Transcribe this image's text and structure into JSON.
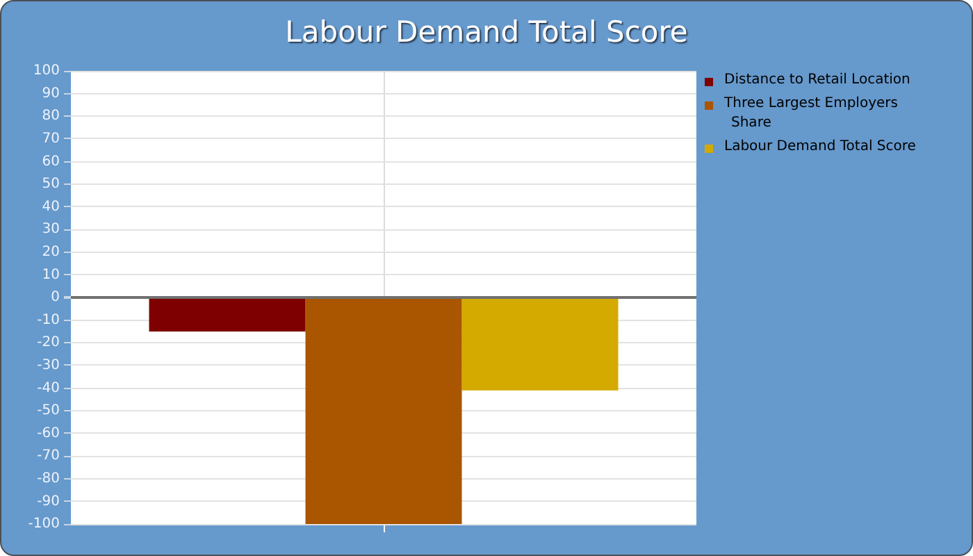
{
  "chart_data": {
    "type": "bar",
    "title": "Labour Demand Total Score",
    "categories": [
      null
    ],
    "series": [
      {
        "name": "Distance to Retail Location",
        "color": "#7f0000",
        "values": [
          -15
        ]
      },
      {
        "name": "Three Largest Employers Share",
        "color": "#aa5500",
        "values": [
          -100
        ]
      },
      {
        "name": "Labour Demand Total Score",
        "color": "#d4aa00",
        "values": [
          -41
        ]
      }
    ],
    "ylim": [
      -100,
      100
    ],
    "yticks": [
      -100,
      -90,
      -80,
      -70,
      -60,
      -50,
      -40,
      -30,
      -20,
      -10,
      0,
      10,
      20,
      30,
      40,
      50,
      60,
      70,
      80,
      90,
      100
    ],
    "grid": true,
    "legend": "right"
  }
}
